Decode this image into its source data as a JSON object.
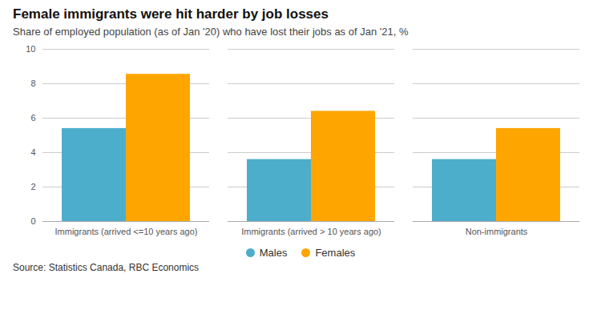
{
  "chart_data": {
    "type": "bar",
    "title": "Female immigrants were hit harder by job losses",
    "subtitle": "Share of employed population (as of Jan '20) who have lost their jobs as of Jan '21, %",
    "source": "Source: Statistics Canada, RBC Economics",
    "categories": [
      "Immigrants (arrived <=10 years ago)",
      "Immigrants (arrived > 10 years ago)",
      "Non-immigrants"
    ],
    "series": [
      {
        "name": "Males",
        "color": "#4DAECC",
        "values": [
          5.4,
          3.6,
          3.6
        ]
      },
      {
        "name": "Females",
        "color": "#FFA500",
        "values": [
          8.55,
          6.4,
          5.4
        ]
      }
    ],
    "ylim": [
      0,
      10
    ],
    "yticks": [
      0,
      2,
      4,
      6,
      8,
      10
    ],
    "grid": true,
    "legend": "bottom"
  }
}
